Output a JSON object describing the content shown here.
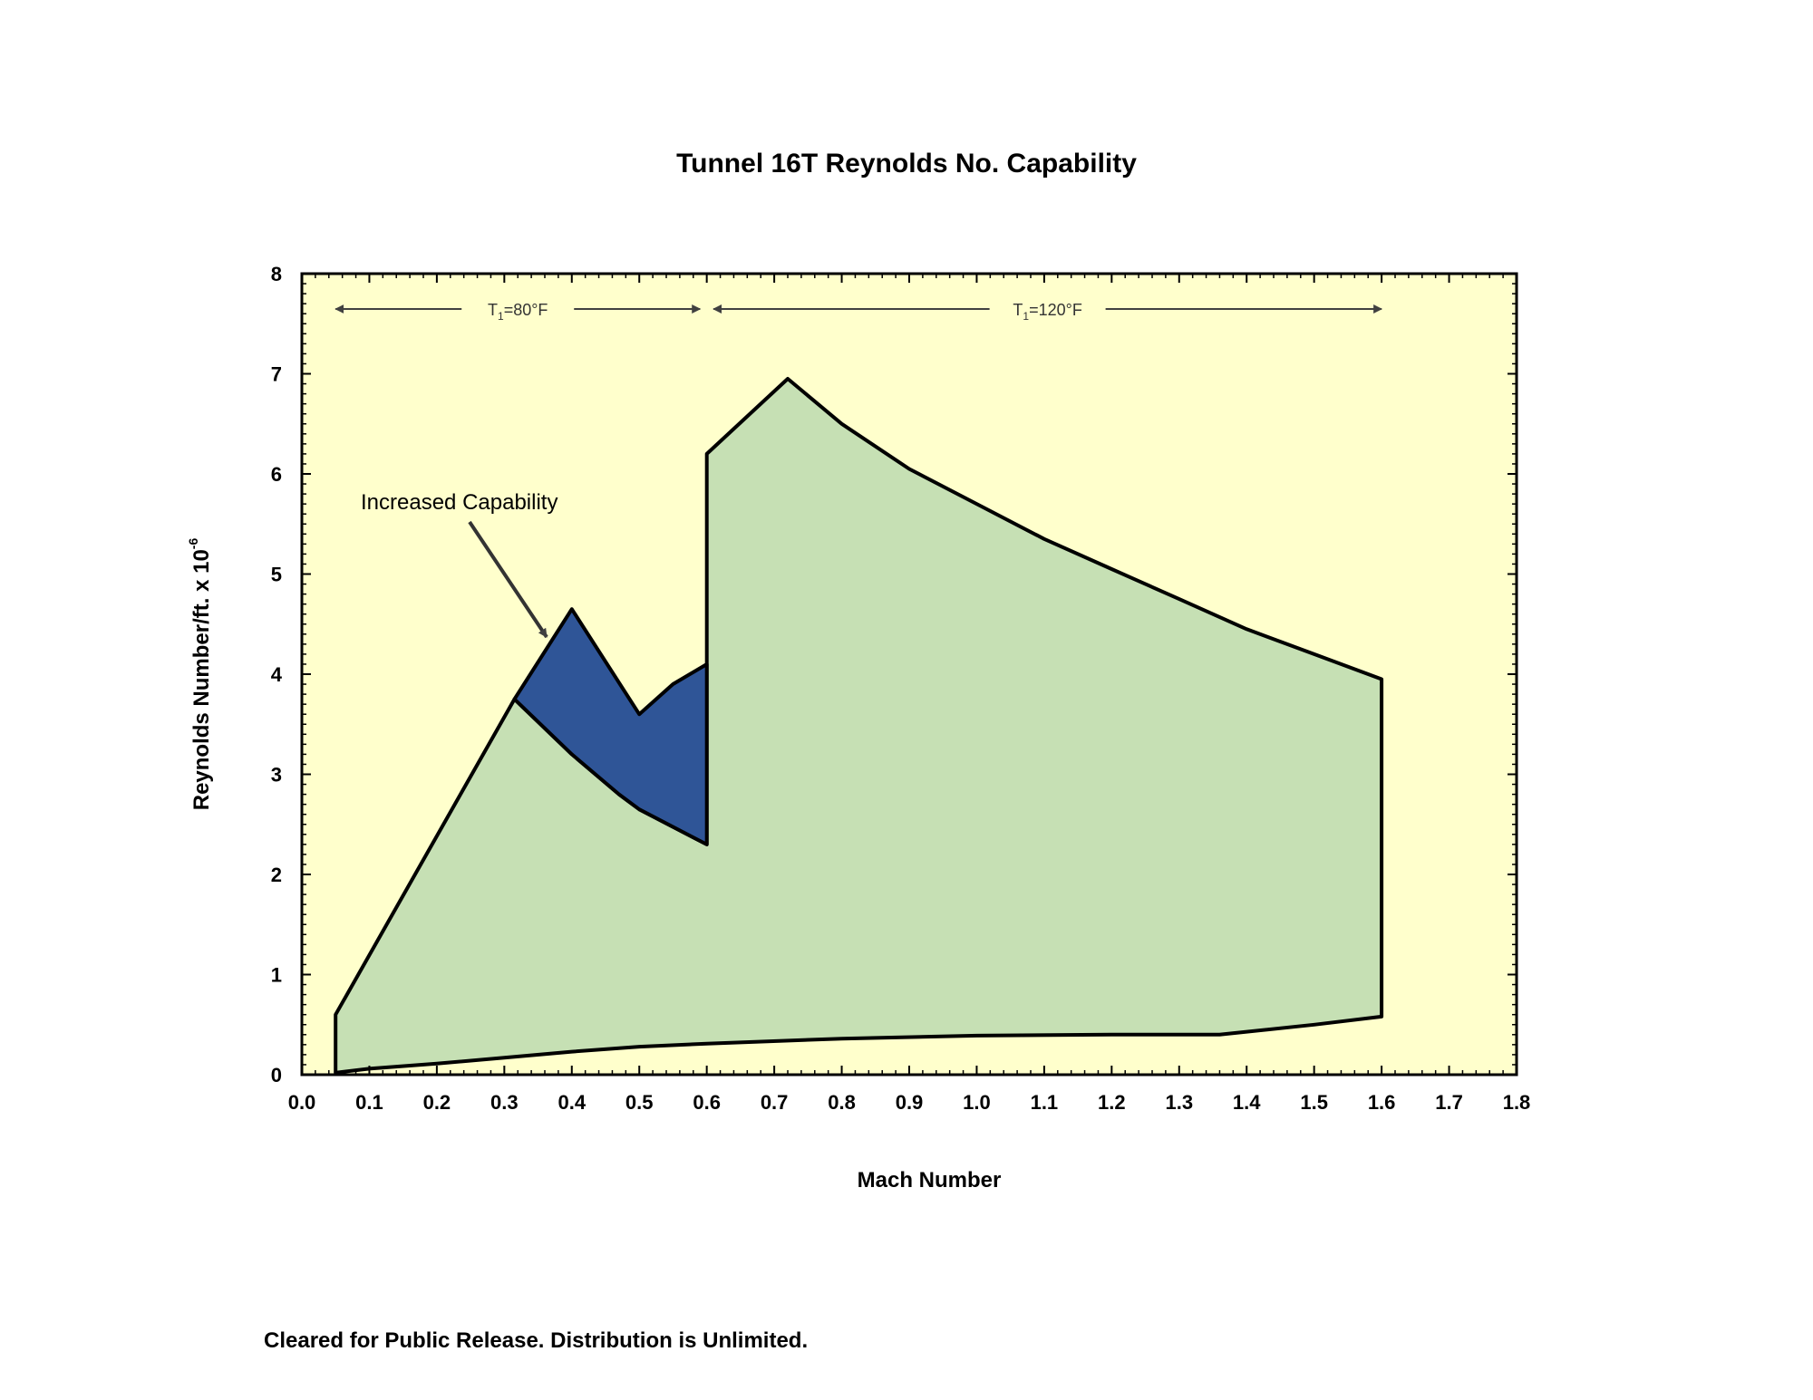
{
  "footer": {
    "text": "Cleared for Public Release. Distribution is Unlimited."
  },
  "chart_data": {
    "type": "area",
    "title": "Tunnel 16T Reynolds No. Capability",
    "xlabel": "Mach Number",
    "ylabel": "Reynolds Number/ft.  x 10",
    "ylabel_superscript": "-6",
    "xlim": [
      0.0,
      1.8
    ],
    "ylim": [
      0,
      8
    ],
    "x_ticks": [
      "0.0",
      "0.1",
      "0.2",
      "0.3",
      "0.4",
      "0.5",
      "0.6",
      "0.7",
      "0.8",
      "0.9",
      "1.0",
      "1.1",
      "1.2",
      "1.3",
      "1.4",
      "1.5",
      "1.6",
      "1.7",
      "1.8"
    ],
    "y_ticks": [
      "0",
      "1",
      "2",
      "3",
      "4",
      "5",
      "6",
      "7",
      "8"
    ],
    "colors": {
      "plot_background": "#FFFFCC",
      "envelope_fill": "#C6E0B4",
      "increased_fill": "#2F5597",
      "outline": "#000000",
      "arrow": "#404040"
    },
    "series": [
      {
        "role": "envelope",
        "points": [
          [
            0.05,
            0.02
          ],
          [
            0.05,
            0.6
          ],
          [
            0.315,
            3.75
          ],
          [
            0.4,
            3.2
          ],
          [
            0.47,
            2.8
          ],
          [
            0.5,
            2.65
          ],
          [
            0.6,
            2.3
          ],
          [
            0.6,
            6.2
          ],
          [
            0.72,
            6.95
          ],
          [
            0.8,
            6.5
          ],
          [
            0.9,
            6.05
          ],
          [
            1.0,
            5.7
          ],
          [
            1.1,
            5.35
          ],
          [
            1.2,
            5.05
          ],
          [
            1.3,
            4.75
          ],
          [
            1.4,
            4.45
          ],
          [
            1.5,
            4.2
          ],
          [
            1.6,
            3.95
          ],
          [
            1.6,
            0.58
          ],
          [
            1.5,
            0.5
          ],
          [
            1.36,
            0.4
          ],
          [
            1.2,
            0.4
          ],
          [
            1.0,
            0.39
          ],
          [
            0.8,
            0.36
          ],
          [
            0.6,
            0.31
          ],
          [
            0.5,
            0.28
          ],
          [
            0.4,
            0.23
          ],
          [
            0.3,
            0.17
          ],
          [
            0.2,
            0.11
          ],
          [
            0.1,
            0.06
          ],
          [
            0.05,
            0.02
          ]
        ]
      },
      {
        "role": "increased",
        "points": [
          [
            0.315,
            3.75
          ],
          [
            0.4,
            4.65
          ],
          [
            0.5,
            3.6
          ],
          [
            0.55,
            3.9
          ],
          [
            0.6,
            4.1
          ],
          [
            0.6,
            2.3
          ],
          [
            0.5,
            2.65
          ],
          [
            0.47,
            2.8
          ],
          [
            0.4,
            3.2
          ],
          [
            0.315,
            3.75
          ]
        ]
      }
    ],
    "annotations": {
      "increased_capability": {
        "text": "Increased Capability"
      },
      "t1_80": {
        "text": "T",
        "sub": "1",
        "rest": "=80°F",
        "x_from": 0.05,
        "x_to": 0.59
      },
      "t1_120": {
        "text": "T",
        "sub": "1",
        "rest": "=120°F",
        "x_from": 0.61,
        "x_to": 1.6
      }
    }
  }
}
